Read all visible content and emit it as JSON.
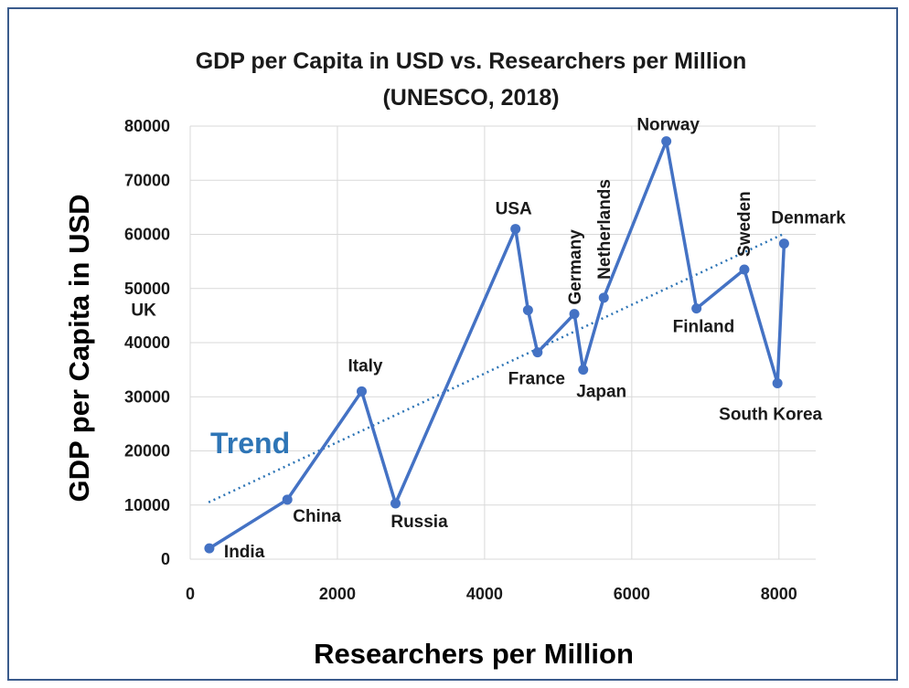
{
  "chart_data": {
    "type": "line",
    "title_line1": "GDP per Capita in USD vs. Researchers per Million",
    "title_line2": "(UNESCO, 2018)",
    "xlabel": "Researchers per Million",
    "ylabel": "GDP per Capita in USD",
    "xlim": [
      0,
      8500
    ],
    "ylim": [
      0,
      80000
    ],
    "x_ticks": [
      0,
      2000,
      4000,
      6000,
      8000
    ],
    "y_ticks": [
      0,
      10000,
      20000,
      30000,
      40000,
      50000,
      60000,
      70000,
      80000
    ],
    "grid": true,
    "line_color": "#4472c4",
    "trend_color": "#2e75b6",
    "trend_label": "Trend",
    "trend_line": {
      "x": [
        250,
        8050
      ],
      "y": [
        10500,
        60000
      ]
    },
    "points": [
      {
        "label": "India",
        "x": 260,
        "y": 2000
      },
      {
        "label": "China",
        "x": 1320,
        "y": 11000
      },
      {
        "label": "Italy",
        "x": 2330,
        "y": 31000
      },
      {
        "label": "Russia",
        "x": 2790,
        "y": 10300
      },
      {
        "label": "USA",
        "x": 4420,
        "y": 61000
      },
      {
        "label": "UK",
        "x": 4590,
        "y": 46000
      },
      {
        "label": "France",
        "x": 4720,
        "y": 38200
      },
      {
        "label": "Germany",
        "x": 5220,
        "y": 45300
      },
      {
        "label": "Japan",
        "x": 5340,
        "y": 35000
      },
      {
        "label": "Netherlands",
        "x": 5620,
        "y": 48300
      },
      {
        "label": "Norway",
        "x": 6470,
        "y": 77200
      },
      {
        "label": "Finland",
        "x": 6880,
        "y": 46300
      },
      {
        "label": "Sweden",
        "x": 7530,
        "y": 53500
      },
      {
        "label": "South Korea",
        "x": 7980,
        "y": 32500
      },
      {
        "label": "Denmark",
        "x": 8070,
        "y": 58300
      }
    ]
  }
}
